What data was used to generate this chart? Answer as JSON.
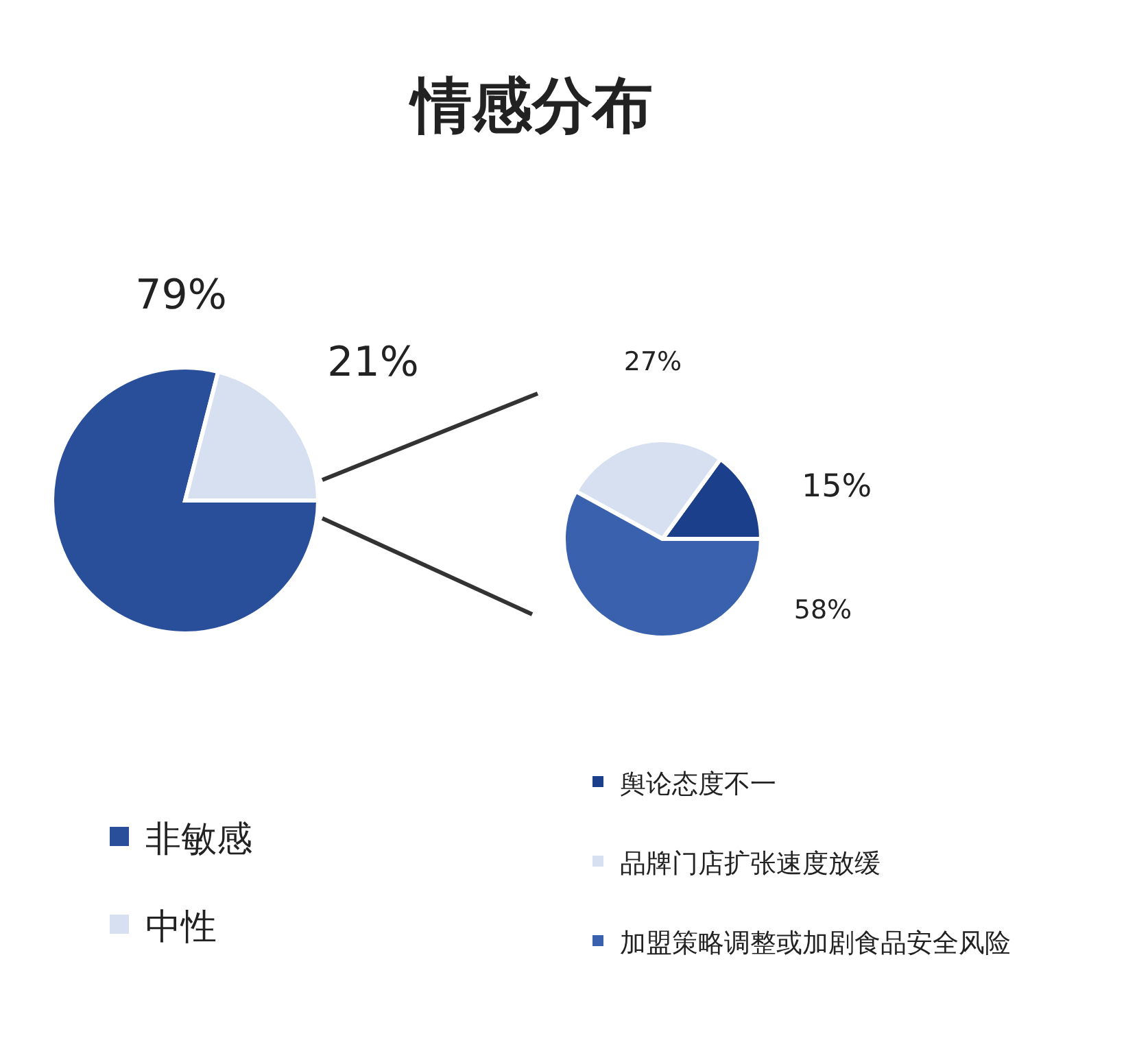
{
  "chart_data": [
    {
      "type": "pie",
      "title": "情感分布",
      "categories": [
        "非敏感",
        "中性"
      ],
      "values": [
        79,
        21
      ],
      "colors": [
        "#2a4f9a",
        "#d6e0f0"
      ],
      "value_labels": [
        "79%",
        "21%"
      ],
      "legend": "bottom left"
    },
    {
      "type": "pie",
      "categories": [
        "舆论态度不一",
        "品牌门店扩张速度放缓",
        "加盟策略调整或加剧食品安全风险"
      ],
      "values": [
        15,
        27,
        58
      ],
      "colors": [
        "#1b3f8a",
        "#d6e0f0",
        "#3a61ad"
      ],
      "value_labels": [
        "15%",
        "27%",
        "58%"
      ],
      "legend": "bottom"
    }
  ]
}
